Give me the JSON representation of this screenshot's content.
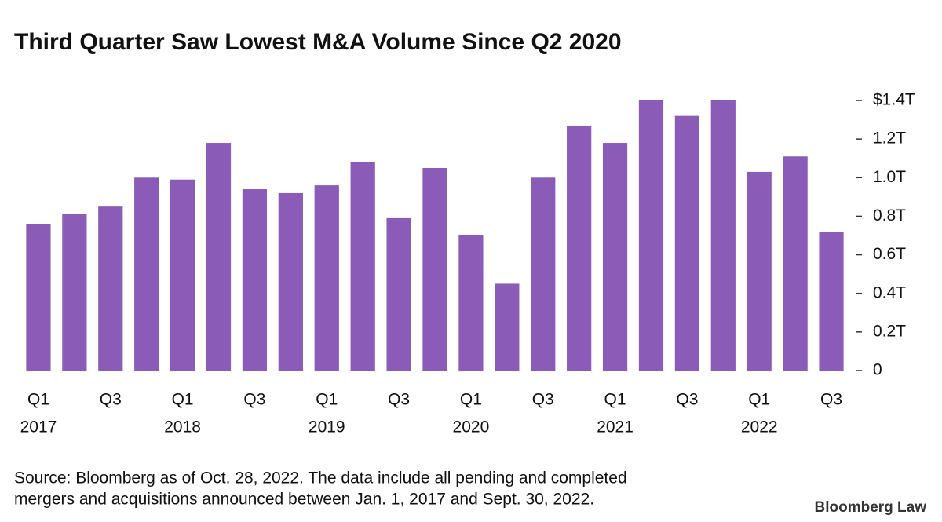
{
  "chart_data": {
    "type": "bar",
    "title": "Third Quarter Saw Lowest M&A Volume Since Q2 2020",
    "categories": [
      "Q1",
      null,
      "Q3",
      null,
      "Q1",
      null,
      "Q3",
      null,
      "Q1",
      null,
      "Q3",
      null,
      "Q1",
      null,
      "Q3",
      null,
      "Q1",
      null,
      "Q3",
      null,
      "Q1",
      null,
      "Q3"
    ],
    "years": [
      "2017",
      null,
      null,
      null,
      "2018",
      null,
      null,
      null,
      "2019",
      null,
      null,
      null,
      "2020",
      null,
      null,
      null,
      "2021",
      null,
      null,
      null,
      "2022",
      null,
      null
    ],
    "values": [
      0.76,
      0.81,
      0.85,
      1.0,
      0.99,
      1.18,
      0.94,
      0.92,
      0.96,
      1.08,
      0.79,
      1.05,
      0.7,
      0.45,
      1.0,
      1.27,
      1.18,
      1.4,
      1.32,
      1.4,
      1.03,
      1.11,
      0.72
    ],
    "color": "#8a5cb8",
    "ylim": [
      0,
      1.4
    ],
    "yticks": [
      0,
      {
        "value": 0.2,
        "label": "0.2T"
      },
      {
        "value": 0.4,
        "label": "0.4T"
      },
      {
        "value": 0.6,
        "label": "0.6T"
      },
      {
        "value": 0.8,
        "label": "0.8T"
      },
      {
        "value": 1.0,
        "label": "1.0T"
      },
      {
        "value": 1.2,
        "label": "1.2T"
      },
      {
        "value": 1.4,
        "label": "$1.4T"
      }
    ],
    "source": [
      "Source: Bloomberg as of Oct. 28, 2022. The data include all pending and completed",
      "mergers and acquisitions announced between Jan. 1, 2017 and Sept. 30, 2022."
    ],
    "brand": "Bloomberg Law"
  }
}
